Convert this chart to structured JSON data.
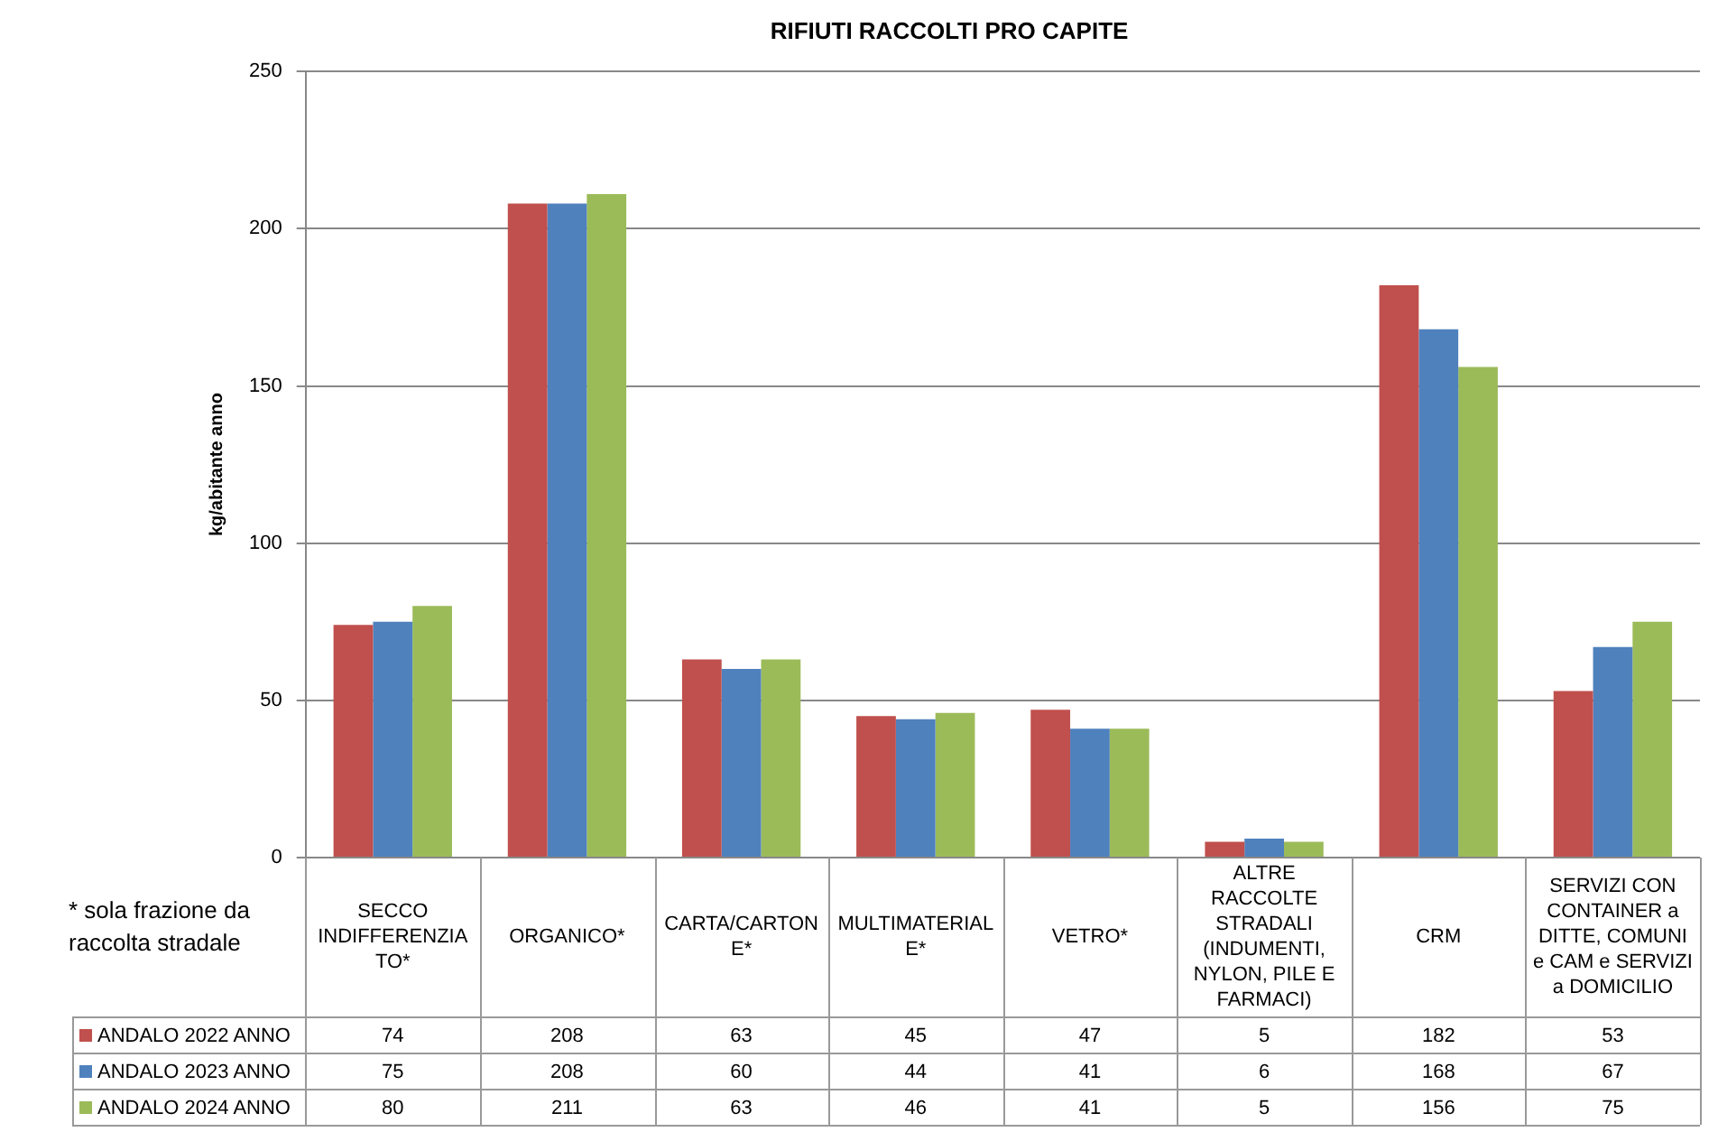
{
  "chart_data": {
    "type": "bar",
    "title": "RIFIUTI RACCOLTI PRO CAPITE",
    "ylabel": "kg/abitante anno",
    "categories": [
      "SECCO INDIFFERENZIATO*",
      "ORGANICO*",
      "CARTA/CARTONE*",
      "MULTIMATERIALE*",
      "VETRO*",
      "ALTRE RACCOLTE STRADALI (INDUMENTI, NYLON, PILE E FARMACI)",
      "CRM",
      "SERVIZI CON CONTAINER a DITTE, COMUNI e CAM e SERVIZI a DOMICILIO"
    ],
    "series": [
      {
        "name": "ANDALO 2022 ANNO",
        "color": "#c0504d",
        "values": [
          74,
          208,
          63,
          45,
          47,
          5,
          182,
          53
        ]
      },
      {
        "name": "ANDALO 2023 ANNO",
        "color": "#4f81bd",
        "values": [
          75,
          208,
          60,
          44,
          41,
          6,
          168,
          67
        ]
      },
      {
        "name": "ANDALO 2024 ANNO",
        "color": "#9bbb59",
        "values": [
          80,
          211,
          63,
          46,
          41,
          5,
          156,
          75
        ]
      }
    ],
    "ylim": [
      0,
      250
    ],
    "yticks": [
      0,
      50,
      100,
      150,
      200,
      250
    ],
    "grid": "y",
    "legend": "bottom left",
    "data_labels": true,
    "annotations": [
      "* sola frazione da raccolta stradale"
    ]
  }
}
